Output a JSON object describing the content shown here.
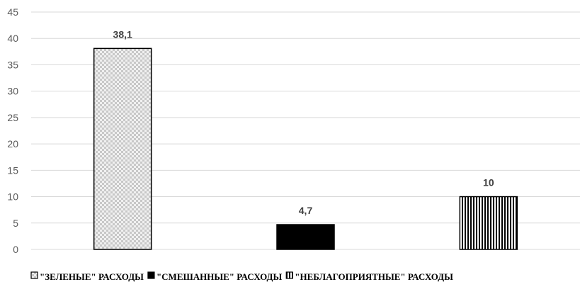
{
  "chart_data": {
    "type": "bar",
    "categories": [
      "\"ЗЕЛЕНЫЕ\" РАСХОДЫ",
      "\"СМЕШАННЫЕ\" РАСХОДЫ",
      "\"НЕБЛАГОПРИЯТНЫЕ\" РАСХОДЫ"
    ],
    "values": [
      38.1,
      4.7,
      10
    ],
    "value_labels": [
      "38,1",
      "4,7",
      "10"
    ],
    "patterns": [
      "checker",
      "solid",
      "vertical-stripes"
    ],
    "ylim": [
      0,
      45
    ],
    "yticks": [
      0,
      5,
      10,
      15,
      20,
      25,
      30,
      35,
      40,
      45
    ],
    "grid": true,
    "legend_position": "bottom",
    "title": "",
    "xlabel": "",
    "ylabel": ""
  }
}
